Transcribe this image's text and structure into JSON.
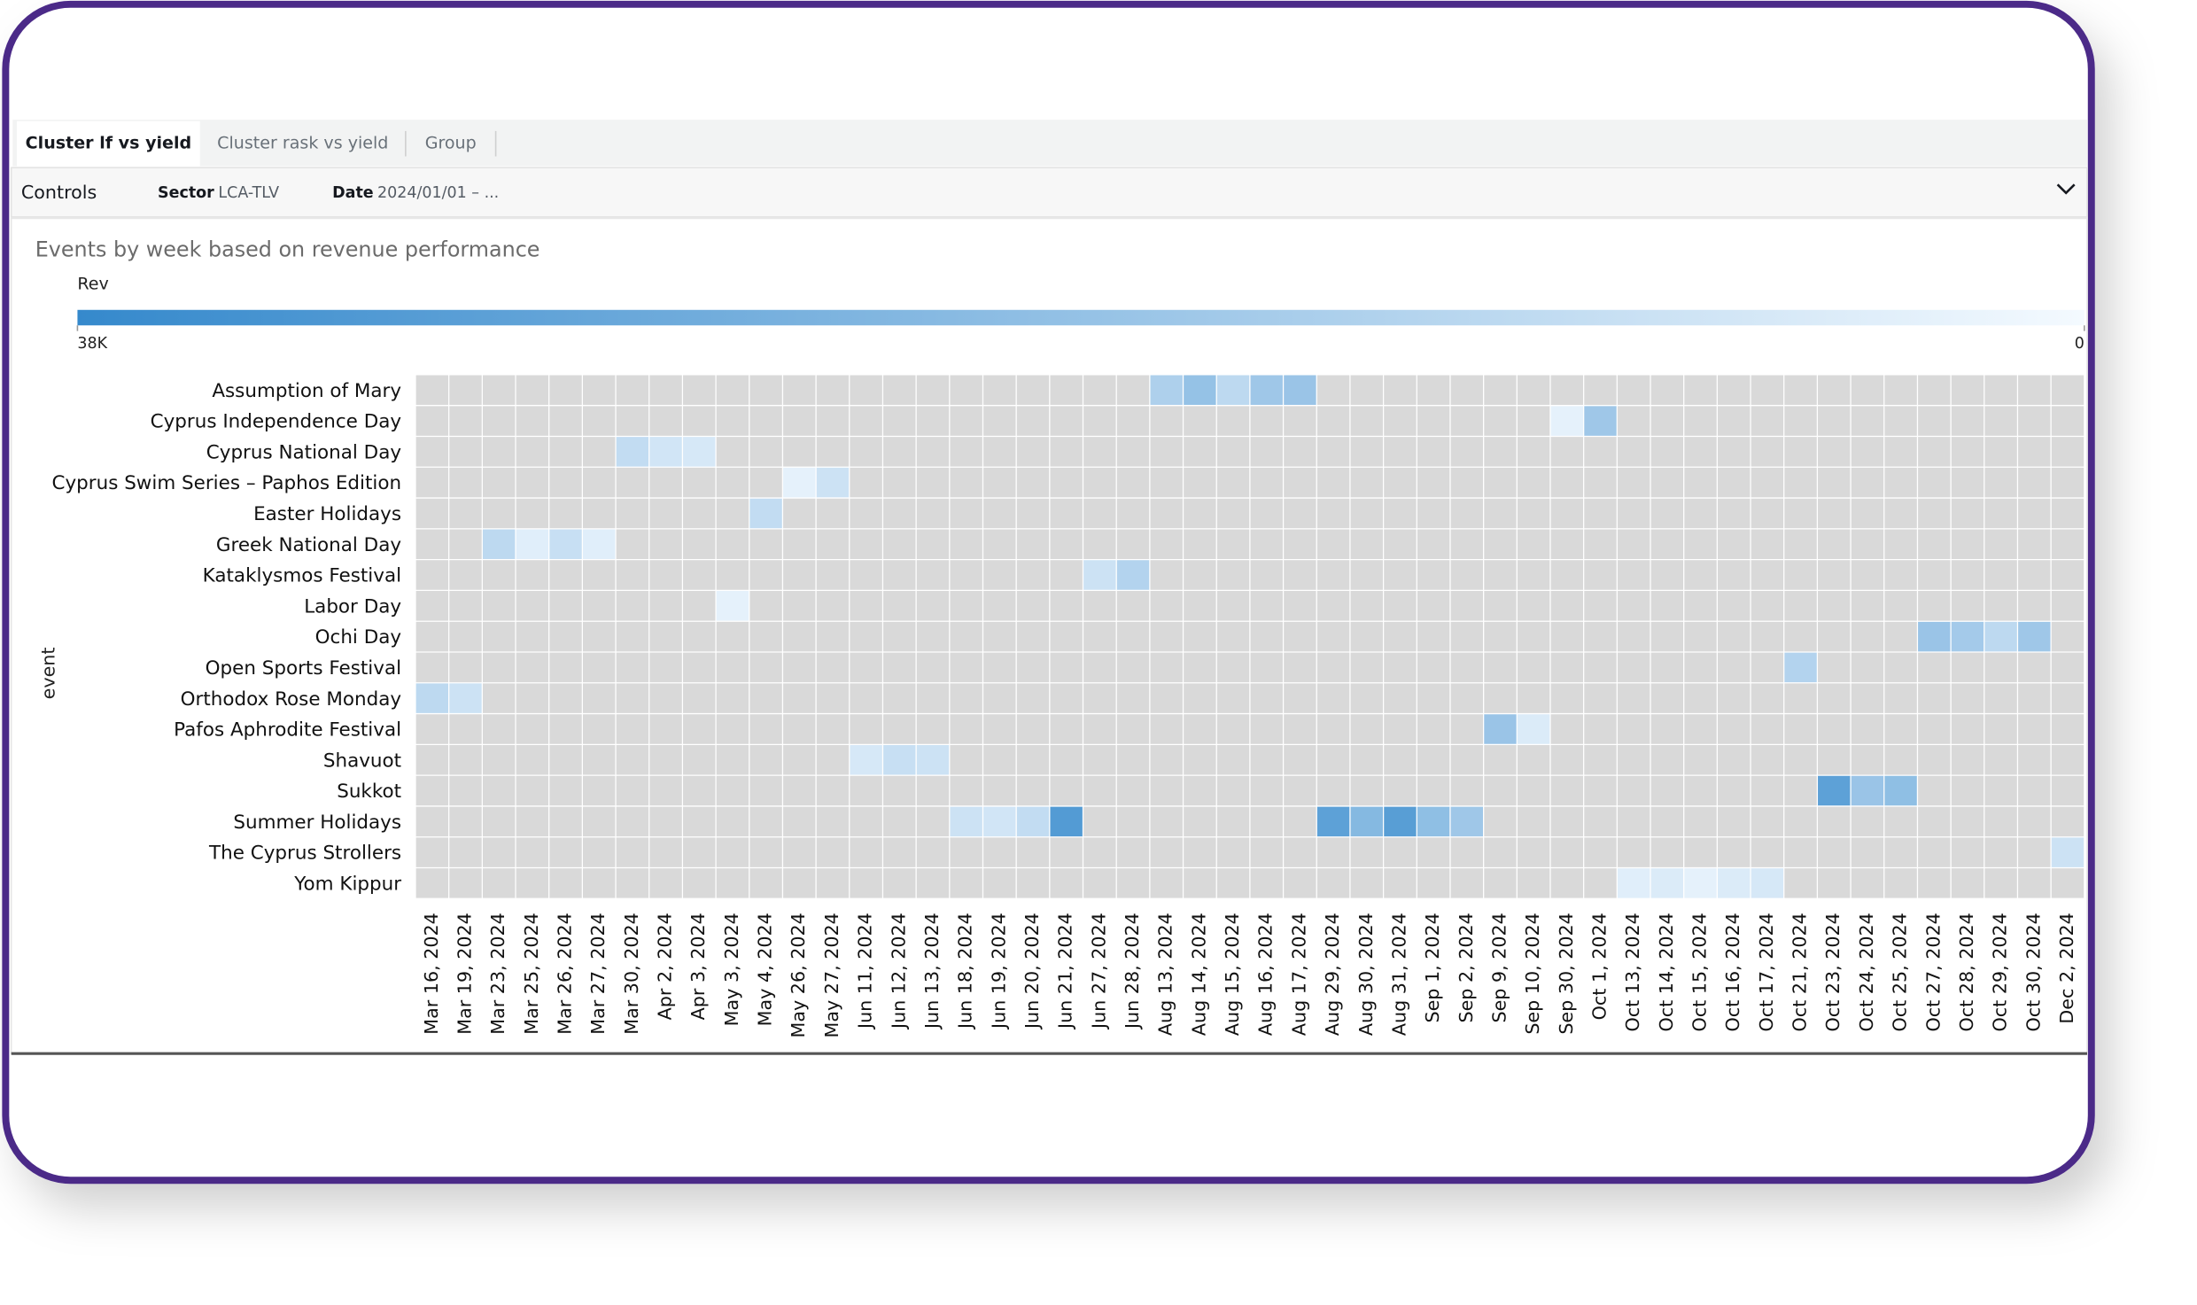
{
  "tabs": [
    {
      "label": "Cluster lf vs yield",
      "active": true
    },
    {
      "label": "Cluster rask vs yield",
      "active": false
    },
    {
      "label": "Group",
      "active": false
    }
  ],
  "controls": {
    "title": "Controls",
    "sector": {
      "label": "Sector",
      "value": "LCA-TLV"
    },
    "date": {
      "label": "Date",
      "value": "2024/01/01 – ..."
    }
  },
  "chart_data": {
    "type": "heatmap",
    "title": "Events by week based on revenue performance",
    "legend_title": "Rev",
    "y_label": "event",
    "zlim": [
      0,
      38000
    ],
    "zticks": [
      {
        "value": 38000,
        "label": "38K"
      },
      0
    ],
    "colors": [
      "#f4faff",
      "#3589cc"
    ],
    "empty_color": "#d9d9d9",
    "x": [
      "Mar 16, 2024",
      "Mar 19, 2024",
      "Mar 23, 2024",
      "Mar 25, 2024",
      "Mar 26, 2024",
      "Mar 27, 2024",
      "Mar 30, 2024",
      "Apr 2, 2024",
      "Apr 3, 2024",
      "May 3, 2024",
      "May 4, 2024",
      "May 26, 2024",
      "May 27, 2024",
      "Jun 11, 2024",
      "Jun 12, 2024",
      "Jun 13, 2024",
      "Jun 18, 2024",
      "Jun 19, 2024",
      "Jun 20, 2024",
      "Jun 21, 2024",
      "Jun 27, 2024",
      "Jun 28, 2024",
      "Aug 13, 2024",
      "Aug 14, 2024",
      "Aug 15, 2024",
      "Aug 16, 2024",
      "Aug 17, 2024",
      "Aug 29, 2024",
      "Aug 30, 2024",
      "Aug 31, 2024",
      "Sep 1, 2024",
      "Sep 2, 2024",
      "Sep 9, 2024",
      "Sep 10, 2024",
      "Sep 30, 2024",
      "Oct 1, 2024",
      "Oct 13, 2024",
      "Oct 14, 2024",
      "Oct 15, 2024",
      "Oct 16, 2024",
      "Oct 17, 2024",
      "Oct 21, 2024",
      "Oct 23, 2024",
      "Oct 24, 2024",
      "Oct 25, 2024",
      "Oct 27, 2024",
      "Oct 28, 2024",
      "Oct 29, 2024",
      "Oct 30, 2024",
      "Dec 2, 2024"
    ],
    "categories": [
      "Assumption of Mary",
      "Cyprus Independence Day",
      "Cyprus National Day",
      "Cyprus Swim Series – Paphos Edition",
      "Easter Holidays",
      "Greek National Day",
      "Kataklysmos Festival",
      "Labor Day",
      "Ochi Day",
      "Open Sports Festival",
      "Orthodox Rose Monday",
      "Pafos Aphrodite Festival",
      "Shavuot",
      "Sukkot",
      "Summer Holidays",
      "The Cyprus Strollers",
      "Yom Kippur"
    ],
    "values": [
      [
        null,
        null,
        null,
        null,
        null,
        null,
        null,
        null,
        null,
        null,
        null,
        null,
        null,
        null,
        null,
        null,
        null,
        null,
        null,
        null,
        null,
        null,
        14000,
        19000,
        11000,
        17000,
        18000,
        null,
        null,
        null,
        null,
        null,
        null,
        null,
        null,
        null,
        null,
        null,
        null,
        null,
        null,
        null,
        null,
        null,
        null,
        null,
        null,
        null,
        null,
        null
      ],
      [
        null,
        null,
        null,
        null,
        null,
        null,
        null,
        null,
        null,
        null,
        null,
        null,
        null,
        null,
        null,
        null,
        null,
        null,
        null,
        null,
        null,
        null,
        null,
        null,
        null,
        null,
        null,
        null,
        null,
        null,
        null,
        null,
        null,
        null,
        3000,
        17000,
        null,
        null,
        null,
        null,
        null,
        null,
        null,
        null,
        null,
        null,
        null,
        null,
        null,
        null
      ],
      [
        null,
        null,
        null,
        null,
        null,
        null,
        10000,
        7000,
        6000,
        null,
        null,
        null,
        null,
        null,
        null,
        null,
        null,
        null,
        null,
        null,
        null,
        null,
        null,
        null,
        null,
        null,
        null,
        null,
        null,
        null,
        null,
        null,
        null,
        null,
        null,
        null,
        null,
        null,
        null,
        null,
        null,
        null,
        null,
        null,
        null,
        null,
        null,
        null,
        null,
        null
      ],
      [
        null,
        null,
        null,
        null,
        null,
        null,
        null,
        null,
        null,
        null,
        null,
        3000,
        8000,
        null,
        null,
        null,
        null,
        null,
        null,
        null,
        null,
        null,
        null,
        null,
        null,
        null,
        null,
        null,
        null,
        null,
        null,
        null,
        null,
        null,
        null,
        null,
        null,
        null,
        null,
        null,
        null,
        null,
        null,
        null,
        null,
        null,
        null,
        null,
        null,
        null
      ],
      [
        null,
        null,
        null,
        null,
        null,
        null,
        null,
        null,
        null,
        null,
        10000,
        null,
        null,
        null,
        null,
        null,
        null,
        null,
        null,
        null,
        null,
        null,
        null,
        null,
        null,
        null,
        null,
        null,
        null,
        null,
        null,
        null,
        null,
        null,
        null,
        null,
        null,
        null,
        null,
        null,
        null,
        null,
        null,
        null,
        null,
        null,
        null,
        null,
        null,
        null
      ],
      [
        null,
        null,
        11000,
        4000,
        9000,
        4000,
        null,
        null,
        null,
        null,
        null,
        null,
        null,
        null,
        null,
        null,
        null,
        null,
        null,
        null,
        null,
        null,
        null,
        null,
        null,
        null,
        null,
        null,
        null,
        null,
        null,
        null,
        null,
        null,
        null,
        null,
        null,
        null,
        null,
        null,
        null,
        null,
        null,
        null,
        null,
        null,
        null,
        null,
        null,
        null
      ],
      [
        null,
        null,
        null,
        null,
        null,
        null,
        null,
        null,
        null,
        null,
        null,
        null,
        null,
        null,
        null,
        null,
        null,
        null,
        null,
        null,
        8000,
        13000,
        null,
        null,
        null,
        null,
        null,
        null,
        null,
        null,
        null,
        null,
        null,
        null,
        null,
        null,
        null,
        null,
        null,
        null,
        null,
        null,
        null,
        null,
        null,
        null,
        null,
        null,
        null,
        null
      ],
      [
        null,
        null,
        null,
        null,
        null,
        null,
        null,
        null,
        null,
        3000,
        null,
        null,
        null,
        null,
        null,
        null,
        null,
        null,
        null,
        null,
        null,
        null,
        null,
        null,
        null,
        null,
        null,
        null,
        null,
        null,
        null,
        null,
        null,
        null,
        null,
        null,
        null,
        null,
        null,
        null,
        null,
        null,
        null,
        null,
        null,
        null,
        null,
        null,
        null,
        null
      ],
      [
        null,
        null,
        null,
        null,
        null,
        null,
        null,
        null,
        null,
        null,
        null,
        null,
        null,
        null,
        null,
        null,
        null,
        null,
        null,
        null,
        null,
        null,
        null,
        null,
        null,
        null,
        null,
        null,
        null,
        null,
        null,
        null,
        null,
        null,
        null,
        null,
        null,
        null,
        null,
        null,
        null,
        null,
        null,
        null,
        null,
        18000,
        16000,
        11000,
        17000,
        null
      ],
      [
        null,
        null,
        null,
        null,
        null,
        null,
        null,
        null,
        null,
        null,
        null,
        null,
        null,
        null,
        null,
        null,
        null,
        null,
        null,
        null,
        null,
        null,
        null,
        null,
        null,
        null,
        null,
        null,
        null,
        null,
        null,
        null,
        null,
        null,
        null,
        null,
        null,
        null,
        null,
        null,
        null,
        13000,
        null,
        null,
        null,
        null,
        null,
        null,
        null,
        null
      ],
      [
        11000,
        8000,
        null,
        null,
        null,
        null,
        null,
        null,
        null,
        null,
        null,
        null,
        null,
        null,
        null,
        null,
        null,
        null,
        null,
        null,
        null,
        null,
        null,
        null,
        null,
        null,
        null,
        null,
        null,
        null,
        null,
        null,
        null,
        null,
        null,
        null,
        null,
        null,
        null,
        null,
        null,
        null,
        null,
        null,
        null,
        null,
        null,
        null,
        null,
        null
      ],
      [
        null,
        null,
        null,
        null,
        null,
        null,
        null,
        null,
        null,
        null,
        null,
        null,
        null,
        null,
        null,
        null,
        null,
        null,
        null,
        null,
        null,
        null,
        null,
        null,
        null,
        null,
        null,
        null,
        null,
        null,
        null,
        null,
        18000,
        5000,
        null,
        null,
        null,
        null,
        null,
        null,
        null,
        null,
        null,
        null,
        null,
        null,
        null,
        null,
        null,
        null
      ],
      [
        null,
        null,
        null,
        null,
        null,
        null,
        null,
        null,
        null,
        null,
        null,
        null,
        null,
        6000,
        9000,
        8000,
        null,
        null,
        null,
        null,
        null,
        null,
        null,
        null,
        null,
        null,
        null,
        null,
        null,
        null,
        null,
        null,
        null,
        null,
        null,
        null,
        null,
        null,
        null,
        null,
        null,
        null,
        null,
        null,
        null,
        null,
        null,
        null,
        null,
        null
      ],
      [
        null,
        null,
        null,
        null,
        null,
        null,
        null,
        null,
        null,
        null,
        null,
        null,
        null,
        null,
        null,
        null,
        null,
        null,
        null,
        null,
        null,
        null,
        null,
        null,
        null,
        null,
        null,
        null,
        null,
        null,
        null,
        null,
        null,
        null,
        null,
        null,
        null,
        null,
        null,
        null,
        null,
        null,
        30000,
        18000,
        20000,
        null,
        null,
        null,
        null,
        null
      ],
      [
        null,
        null,
        null,
        null,
        null,
        null,
        null,
        null,
        null,
        null,
        null,
        null,
        null,
        null,
        null,
        null,
        8000,
        7000,
        10000,
        32000,
        null,
        null,
        null,
        null,
        null,
        null,
        null,
        30000,
        22000,
        31000,
        20000,
        17000,
        null,
        null,
        null,
        null,
        null,
        null,
        null,
        null,
        null,
        null,
        null,
        null,
        null,
        null,
        null,
        null,
        null,
        null
      ],
      [
        null,
        null,
        null,
        null,
        null,
        null,
        null,
        null,
        null,
        null,
        null,
        null,
        null,
        null,
        null,
        null,
        null,
        null,
        null,
        null,
        null,
        null,
        null,
        null,
        null,
        null,
        null,
        null,
        null,
        null,
        null,
        null,
        null,
        null,
        null,
        null,
        null,
        null,
        null,
        null,
        null,
        null,
        null,
        null,
        null,
        null,
        null,
        null,
        null,
        8000
      ],
      [
        null,
        null,
        null,
        null,
        null,
        null,
        null,
        null,
        null,
        null,
        null,
        null,
        null,
        null,
        null,
        null,
        null,
        null,
        null,
        null,
        null,
        null,
        null,
        null,
        null,
        null,
        null,
        null,
        null,
        null,
        null,
        null,
        null,
        null,
        null,
        null,
        4000,
        5000,
        3000,
        5000,
        6000,
        null,
        null,
        null,
        null,
        null,
        null,
        null,
        null,
        null
      ]
    ]
  }
}
